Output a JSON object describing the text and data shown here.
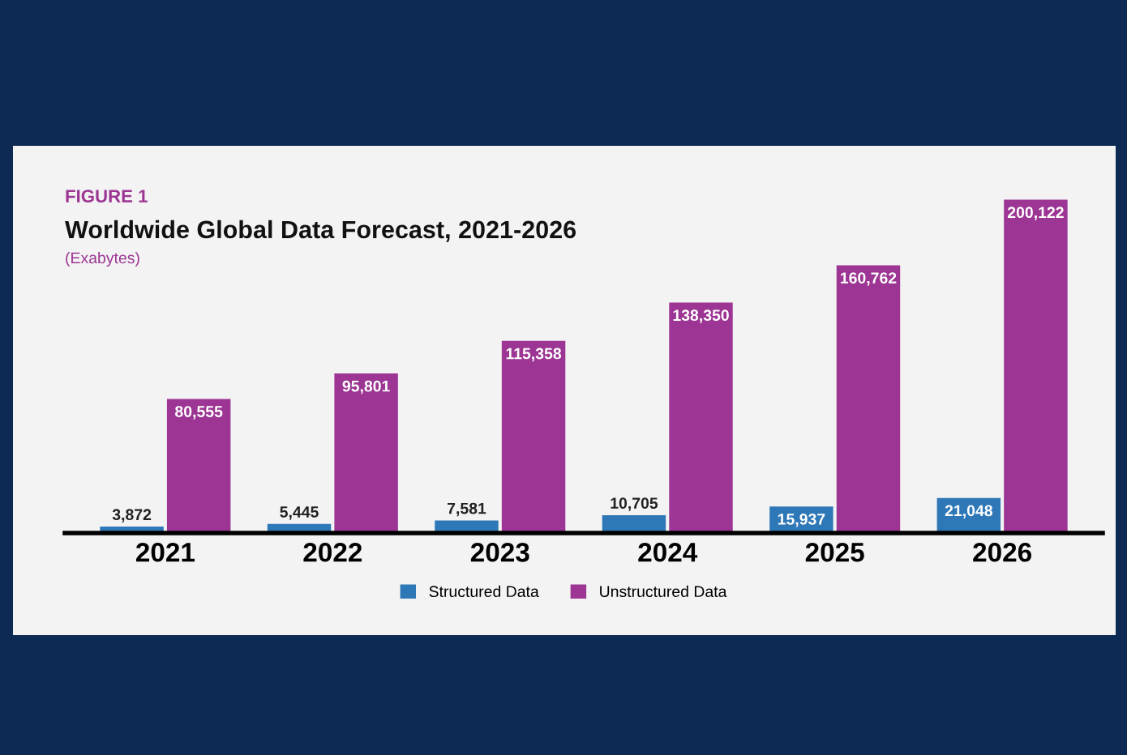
{
  "chart_data": {
    "type": "bar",
    "title": "Worldwide Global Data Forecast, 2021-2026",
    "subtitle": "(Exabytes)",
    "annotations": [
      "FIGURE 1"
    ],
    "categories": [
      "2021",
      "2022",
      "2023",
      "2024",
      "2025",
      "2026"
    ],
    "series": [
      {
        "name": "Structured Data",
        "color": "#2f78b7",
        "values": [
          3872,
          5445,
          7581,
          10705,
          15937,
          21048
        ],
        "value_labels": [
          "3,872",
          "5,445",
          "7,581",
          "10,705",
          "15,937",
          "21,048"
        ]
      },
      {
        "name": "Unstructured Data",
        "color": "#9c3593",
        "values": [
          80555,
          95801,
          115358,
          138350,
          160762,
          200122
        ],
        "value_labels": [
          "80,555",
          "95,801",
          "115,358",
          "138,350",
          "160,762",
          "200,122"
        ]
      }
    ],
    "legend": "bottom",
    "grid": false
  }
}
